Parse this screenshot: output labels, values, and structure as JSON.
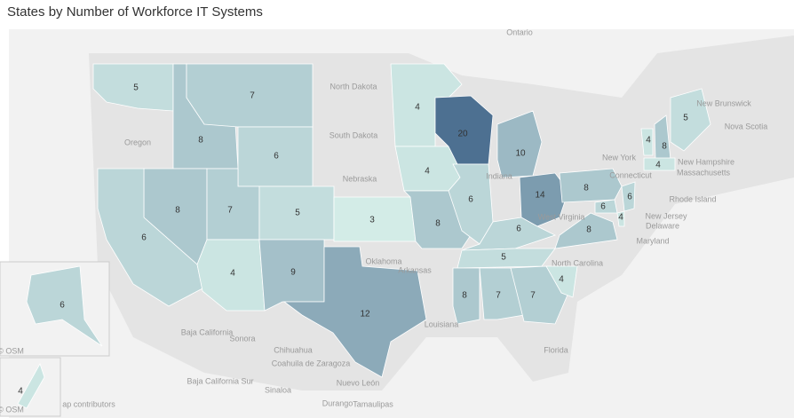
{
  "title": "States by Number of Workforce IT Systems",
  "map": {
    "values": [
      5,
      8,
      7,
      6,
      8,
      7,
      5,
      6,
      4,
      9,
      12,
      3,
      4,
      4,
      8,
      20,
      6,
      10,
      14,
      6,
      5,
      8,
      7,
      7,
      4,
      8,
      8,
      6,
      4,
      6,
      4,
      8,
      4,
      5,
      6,
      4
    ],
    "color_range": [
      "#d3ece7",
      "#4d7091"
    ]
  },
  "place_labels": [
    "Ontario",
    "North Dakota",
    "South Dakota",
    "Oregon",
    "Nebraska",
    "Indiana",
    "Oklahoma",
    "Arkansas",
    "Louisiana",
    "West Virginia",
    "North Carolina",
    "New York",
    "Connecticut",
    "New Brunswick",
    "Nova Scotia",
    "New Hampshire",
    "Massachusetts",
    "Rhode Island",
    "New Jersey",
    "Delaware",
    "Maryland",
    "Baja California",
    "Sonora",
    "Chihuahua",
    "Coahuila de Zaragoza",
    "Nuevo León",
    "Baja California Sur",
    "Sinaloa",
    "Durango",
    "Tamaulipas",
    "Florida",
    "© OSM",
    "© OSM",
    "ap contributors"
  ]
}
